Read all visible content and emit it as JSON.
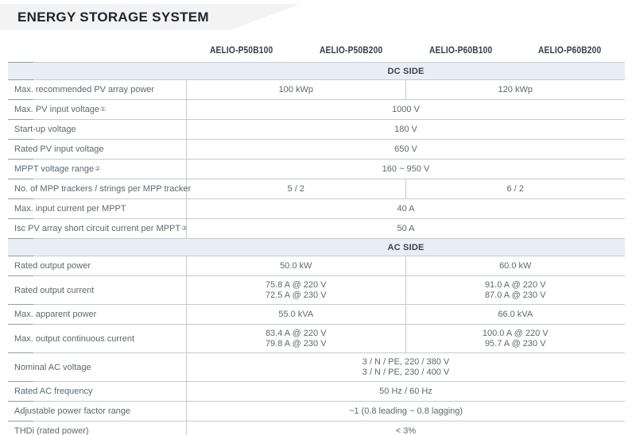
{
  "title": "ENERGY STORAGE SYSTEM",
  "products": [
    "AELIO-P50B100",
    "AELIO-P50B200",
    "AELIO-P60B100",
    "AELIO-P60B200"
  ],
  "sections": [
    {
      "name": "DC SIDE",
      "rows": [
        {
          "label": "Max. recommended PV array power",
          "cells": [
            {
              "span": 2,
              "lines": [
                "100 kWp"
              ]
            },
            {
              "span": 2,
              "lines": [
                "120 kWp"
              ]
            }
          ]
        },
        {
          "label": "Max. PV input voltage",
          "sup": "①",
          "cells": [
            {
              "span": 4,
              "lines": [
                "1000 V"
              ]
            }
          ]
        },
        {
          "label": "Start-up voltage",
          "cells": [
            {
              "span": 4,
              "lines": [
                "180 V"
              ]
            }
          ]
        },
        {
          "label": "Rated PV input voltage",
          "cells": [
            {
              "span": 4,
              "lines": [
                "650 V"
              ]
            }
          ]
        },
        {
          "label": "MPPT voltage range",
          "sup": "②",
          "cells": [
            {
              "span": 4,
              "lines": [
                "160 ~ 950 V"
              ]
            }
          ]
        },
        {
          "label": "No. of MPP trackers / strings per MPP tracker",
          "cells": [
            {
              "span": 2,
              "lines": [
                "5 / 2"
              ]
            },
            {
              "span": 2,
              "lines": [
                "6 / 2"
              ]
            }
          ]
        },
        {
          "label": "Max. input current per MPPT",
          "cells": [
            {
              "span": 4,
              "lines": [
                "40 A"
              ]
            }
          ]
        },
        {
          "label": "Isc PV array short circuit current per MPPT",
          "sup": "③",
          "cells": [
            {
              "span": 4,
              "lines": [
                "50 A"
              ]
            }
          ]
        }
      ]
    },
    {
      "name": "AC SIDE",
      "rows": [
        {
          "label": "Rated output power",
          "cells": [
            {
              "span": 2,
              "lines": [
                "50.0 kW"
              ]
            },
            {
              "span": 2,
              "lines": [
                "60.0 kW"
              ]
            }
          ]
        },
        {
          "label": "Rated output current",
          "tall": true,
          "cells": [
            {
              "span": 2,
              "lines": [
                "75.8 A @ 220 V",
                "72.5 A @ 230 V"
              ]
            },
            {
              "span": 2,
              "lines": [
                "91.0 A @ 220 V",
                "87.0 A @ 230 V"
              ]
            }
          ]
        },
        {
          "label": "Max. apparent power",
          "cells": [
            {
              "span": 2,
              "lines": [
                "55.0 kVA"
              ]
            },
            {
              "span": 2,
              "lines": [
                "66.0 kVA"
              ]
            }
          ]
        },
        {
          "label": "Max. output continuous current",
          "tall": true,
          "cells": [
            {
              "span": 2,
              "lines": [
                "83.4 A @ 220 V",
                "79.8 A @ 230 V"
              ]
            },
            {
              "span": 2,
              "lines": [
                "100.0 A @ 220 V",
                "95.7 A @ 230 V"
              ]
            }
          ]
        },
        {
          "label": "Nominal AC voltage",
          "tall": true,
          "cells": [
            {
              "span": 4,
              "lines": [
                "3 / N / PE, 220 / 380 V",
                "3 / N / PE, 230 / 400 V"
              ]
            }
          ]
        },
        {
          "label": "Rated AC frequency",
          "cells": [
            {
              "span": 4,
              "lines": [
                "50 Hz / 60 Hz"
              ]
            }
          ]
        },
        {
          "label": "Adjustable power factor range",
          "cells": [
            {
              "span": 4,
              "lines": [
                "~1 (0.8 leading ~ 0.8 lagging)"
              ]
            }
          ]
        },
        {
          "label": "THDi (rated power)",
          "cells": [
            {
              "span": 4,
              "lines": [
                "< 3%"
              ]
            }
          ]
        }
      ]
    }
  ],
  "colors": {
    "banner_bg": "#f3f3f4",
    "title_color": "#1c242e",
    "colhead_color": "#333c46",
    "section_bg": "#e8eef6",
    "section_text": "#39434f",
    "text": "#5e6870",
    "line_light": "#c8cacc",
    "line_dark": "#989da1"
  }
}
